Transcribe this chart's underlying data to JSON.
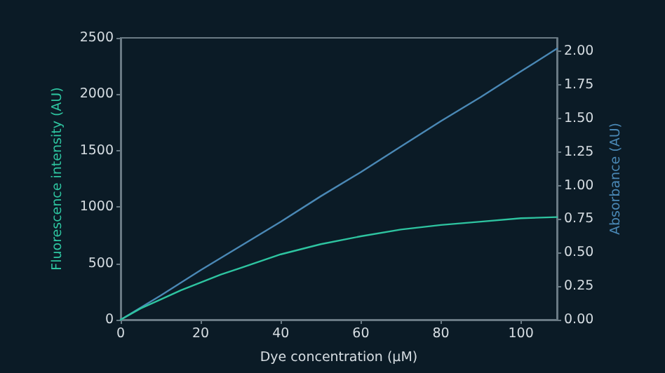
{
  "chart_data": {
    "type": "line",
    "xlabel": "Dye concentration (μM)",
    "ylabel": "Fluorescence intensity (AU)",
    "y2label": "Absorbance (AU)",
    "xlim": [
      0,
      109
    ],
    "xticks": [
      0,
      20,
      40,
      60,
      80,
      100
    ],
    "ylim": [
      0,
      2500
    ],
    "yticks": [
      0,
      500,
      1000,
      1500,
      2000,
      2500
    ],
    "y2lim": [
      0,
      2.1
    ],
    "y2ticks": [
      {
        "value": 0,
        "label": "0.00"
      },
      {
        "value": 0.25,
        "label": "0.25"
      },
      {
        "value": 0.5,
        "label": "0.50"
      },
      {
        "value": 0.75,
        "label": "0.75"
      },
      {
        "value": 1,
        "label": "1.00"
      },
      {
        "value": 1.25,
        "label": "1.25"
      },
      {
        "value": 1.5,
        "label": "1.50"
      },
      {
        "value": 1.75,
        "label": "1.75"
      },
      {
        "value": 2,
        "label": "2.00"
      }
    ],
    "grid": false,
    "marker": "none",
    "series": [
      {
        "color": "#4a88b5",
        "axis": "y2",
        "x": [
          0,
          10,
          20,
          30,
          40,
          50,
          60,
          70,
          80,
          90,
          100,
          109
        ],
        "values": [
          0,
          0.18,
          0.37,
          0.55,
          0.73,
          0.92,
          1.1,
          1.29,
          1.48,
          1.66,
          1.85,
          2.02
        ]
      },
      {
        "color": "#2ec4a0",
        "axis": "y",
        "x": [
          0,
          5,
          10,
          15,
          20,
          25,
          30,
          35,
          40,
          50,
          60,
          70,
          80,
          90,
          100,
          109
        ],
        "values": [
          0,
          100,
          180,
          260,
          330,
          400,
          460,
          520,
          580,
          670,
          740,
          800,
          840,
          870,
          900,
          910
        ]
      }
    ]
  }
}
